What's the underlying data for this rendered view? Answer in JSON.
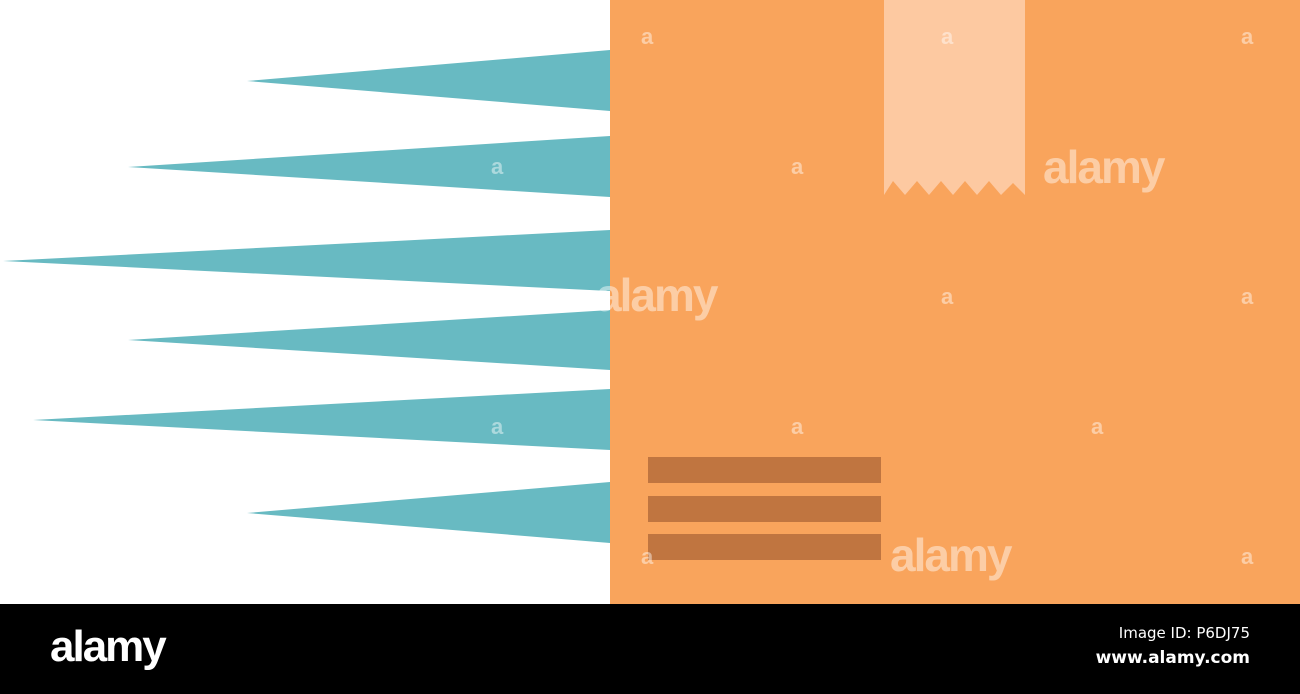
{
  "illustration": {
    "subject": "fast delivery cardboard box with speed lines",
    "colors": {
      "box": "#f9a45c",
      "tape": "#fdc9a1",
      "label_lines": "#c07540",
      "speed_lines": "#68bac2",
      "background": "#ffffff"
    },
    "label_line_count": 3,
    "speed_line_count": 6
  },
  "watermark": {
    "text": "alamy",
    "letter": "a"
  },
  "footer": {
    "brand": "alamy",
    "image_id": "Image ID: P6DJ75",
    "url": "www.alamy.com"
  }
}
